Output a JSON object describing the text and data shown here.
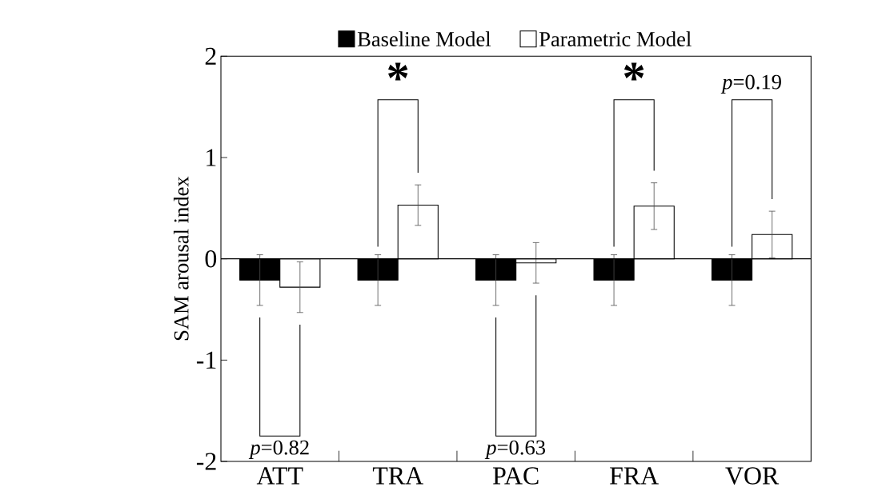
{
  "chart_data": {
    "type": "bar",
    "ylabel": "SAM arousal index",
    "categories": [
      "ATT",
      "TRA",
      "PAC",
      "FRA",
      "VOR"
    ],
    "series": [
      {
        "name": "Baseline Model",
        "color": "#000000",
        "values": [
          -0.21,
          -0.21,
          -0.21,
          -0.21,
          -0.21
        ],
        "errors": [
          0.25,
          0.25,
          0.25,
          0.25,
          0.25
        ]
      },
      {
        "name": "Parametric Model",
        "color": "#ffffff",
        "values": [
          -0.28,
          0.53,
          -0.04,
          0.52,
          0.24
        ],
        "errors": [
          0.25,
          0.2,
          0.2,
          0.23,
          0.23
        ]
      }
    ],
    "ylim": [
      -2,
      2
    ],
    "yticks": [
      -2,
      -1,
      0,
      1,
      2
    ],
    "legend": "top",
    "annotations": [
      "*p*=0.82",
      "*",
      "*p*=0.63",
      "*",
      "*p*=0.19"
    ]
  }
}
